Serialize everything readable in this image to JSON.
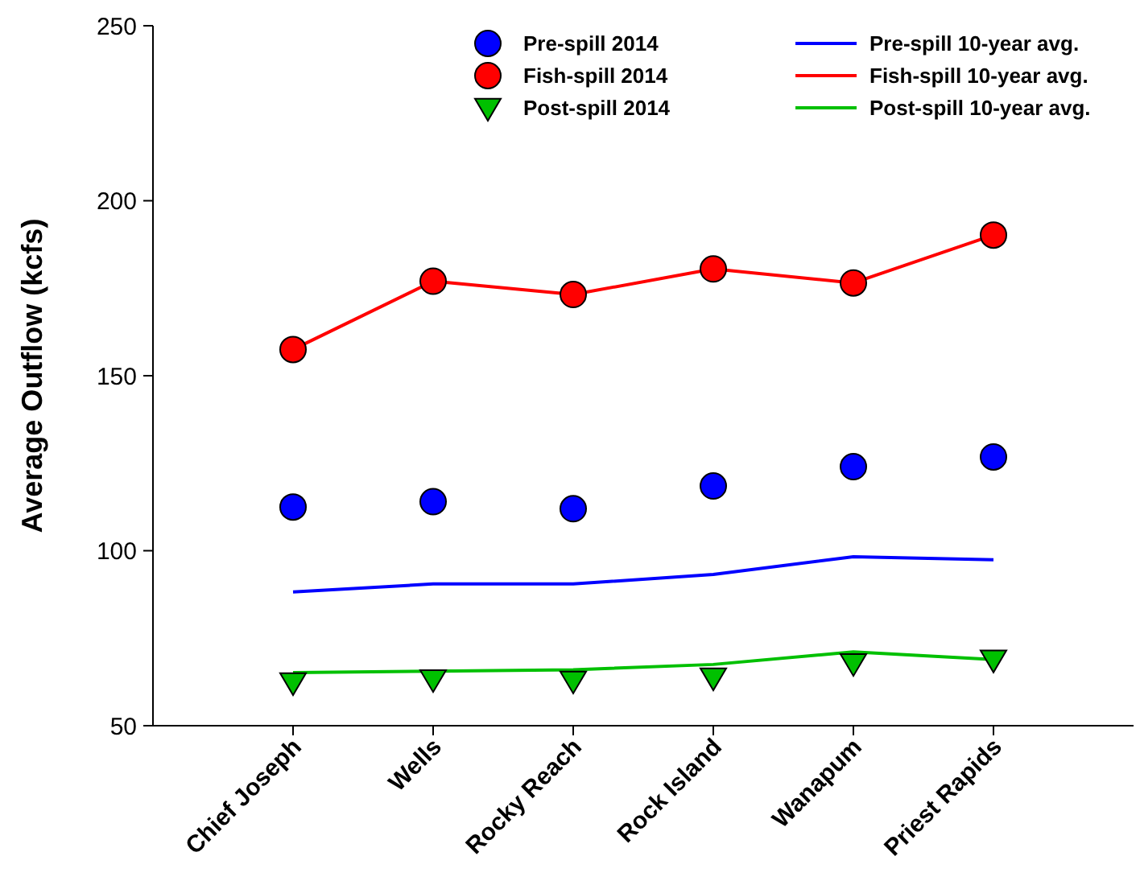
{
  "chart_data": {
    "type": "scatter",
    "ylabel": "Average Outflow (kcfs)",
    "categories": [
      "Chief Joseph",
      "Wells",
      "Rocky Reach",
      "Rock Island",
      "Wanapum",
      "Priest Rapids"
    ],
    "ylim": [
      50,
      250
    ],
    "yticks": [
      50,
      100,
      150,
      200,
      250
    ],
    "grid": false,
    "legend": "top right",
    "series": [
      {
        "name": "Pre-spill 2014",
        "marker": "circle",
        "color": "#0000ff",
        "values": [
          112.5,
          114,
          112,
          118.5,
          124,
          126.8
        ]
      },
      {
        "name": "Fish-spill 2014",
        "marker": "circle",
        "color": "#ff0000",
        "values": [
          157.5,
          177,
          173.2,
          180.5,
          176.5,
          190.2
        ]
      },
      {
        "name": "Post-spill 2014",
        "marker": "triangle",
        "color": "#00c000",
        "values": [
          62.4,
          63.3,
          62.9,
          63.8,
          67.9,
          68.9
        ]
      },
      {
        "name": "Pre-spill 10-year avg.",
        "type": "line",
        "marker": "none",
        "color": "#0000ff",
        "values": [
          88.2,
          90.5,
          90.5,
          93.2,
          98.3,
          97.4
        ]
      },
      {
        "name": "Fish-spill 10-year avg.",
        "type": "line",
        "marker": "none",
        "color": "#ff0000",
        "values": [
          157.5,
          177,
          173.2,
          180.5,
          176.5,
          190.2
        ]
      },
      {
        "name": "Post-spill 10-year avg.",
        "type": "line",
        "marker": "none",
        "color": "#00c000",
        "values": [
          65.2,
          65.6,
          66,
          67.5,
          71.1,
          68.9
        ]
      }
    ]
  }
}
